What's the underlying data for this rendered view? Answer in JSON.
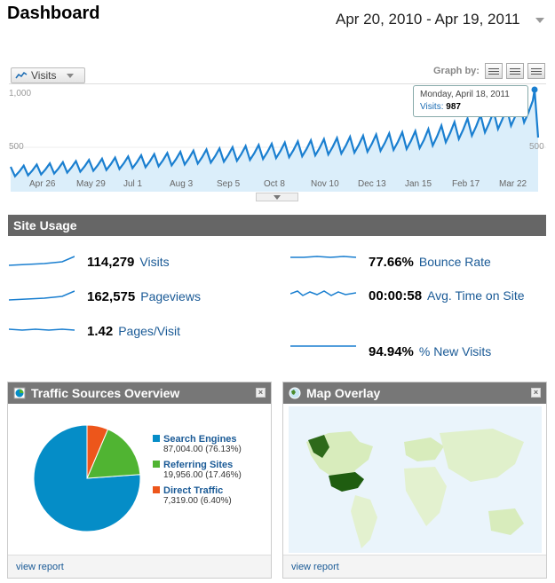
{
  "header": {
    "title": "Dashboard",
    "date_range": "Apr 20, 2010 - Apr 19, 2011"
  },
  "graph": {
    "metric_label": "Visits",
    "graph_by_label": "Graph by:",
    "y_ticks": [
      "1,000",
      "500"
    ],
    "y_right_tick": "500",
    "x_labels": [
      "Apr 26",
      "May 29",
      "Jul 1",
      "Aug 3",
      "Sep 5",
      "Oct 8",
      "Nov 10",
      "Dec 13",
      "Jan 15",
      "Feb 17",
      "Mar 22"
    ],
    "tooltip": {
      "date": "Monday, April 18, 2011",
      "label": "Visits:",
      "value": "987"
    },
    "line_color": "#1a7fd0"
  },
  "site_usage": {
    "title": "Site Usage",
    "metrics": [
      {
        "value": "114,279",
        "label": "Visits"
      },
      {
        "value": "162,575",
        "label": "Pageviews"
      },
      {
        "value": "1.42",
        "label": "Pages/Visit"
      },
      {
        "value": "77.66%",
        "label": "Bounce Rate"
      },
      {
        "value": "00:00:58",
        "label": "Avg. Time on Site"
      },
      {
        "value": "94.94%",
        "label": "% New Visits"
      }
    ]
  },
  "traffic": {
    "title": "Traffic Sources Overview",
    "close_glyph": "×",
    "view_report": "view report",
    "sources": [
      {
        "name": "Search Engines",
        "value": "87,004.00 (76.13%)",
        "pct": 76.13,
        "color": "#058dc7"
      },
      {
        "name": "Referring Sites",
        "value": "19,956.00 (17.46%)",
        "pct": 17.46,
        "color": "#50b432"
      },
      {
        "name": "Direct Traffic",
        "value": "7,319.00 (6.40%)",
        "pct": 6.4,
        "color": "#ed561b"
      }
    ]
  },
  "map": {
    "title": "Map Overlay",
    "close_glyph": "×",
    "view_report": "view report"
  }
}
